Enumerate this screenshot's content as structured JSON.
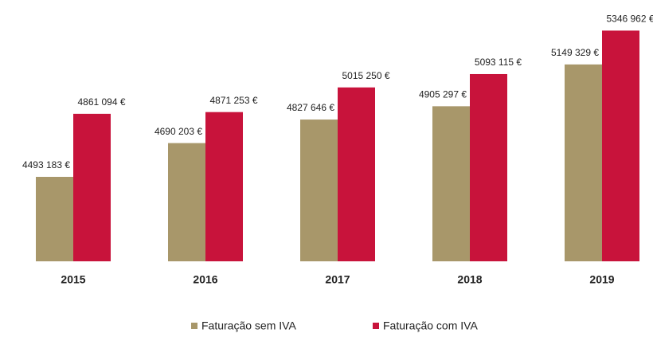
{
  "chart_data": {
    "type": "bar",
    "categories": [
      "2015",
      "2016",
      "2017",
      "2018",
      "2019"
    ],
    "series": [
      {
        "name": "Faturação sem IVA",
        "color": "#a8976a",
        "values": [
          4493183,
          4690203,
          4827646,
          4905297,
          5149329
        ],
        "value_labels": [
          "4493 183 €",
          "4690 203 €",
          "4827 646 €",
          "4905 297 €",
          "5149 329 €"
        ]
      },
      {
        "name": "Faturação com IVA",
        "color": "#c8133b",
        "values": [
          4861094,
          4871253,
          5015250,
          5093115,
          5346962
        ],
        "value_labels": [
          "4861 094 €",
          "4871 253 €",
          "5015 250 €",
          "5093 115 €",
          "5346 962 €"
        ]
      }
    ],
    "ylim": [
      4000000,
      5400000
    ],
    "legend": "bottom"
  }
}
